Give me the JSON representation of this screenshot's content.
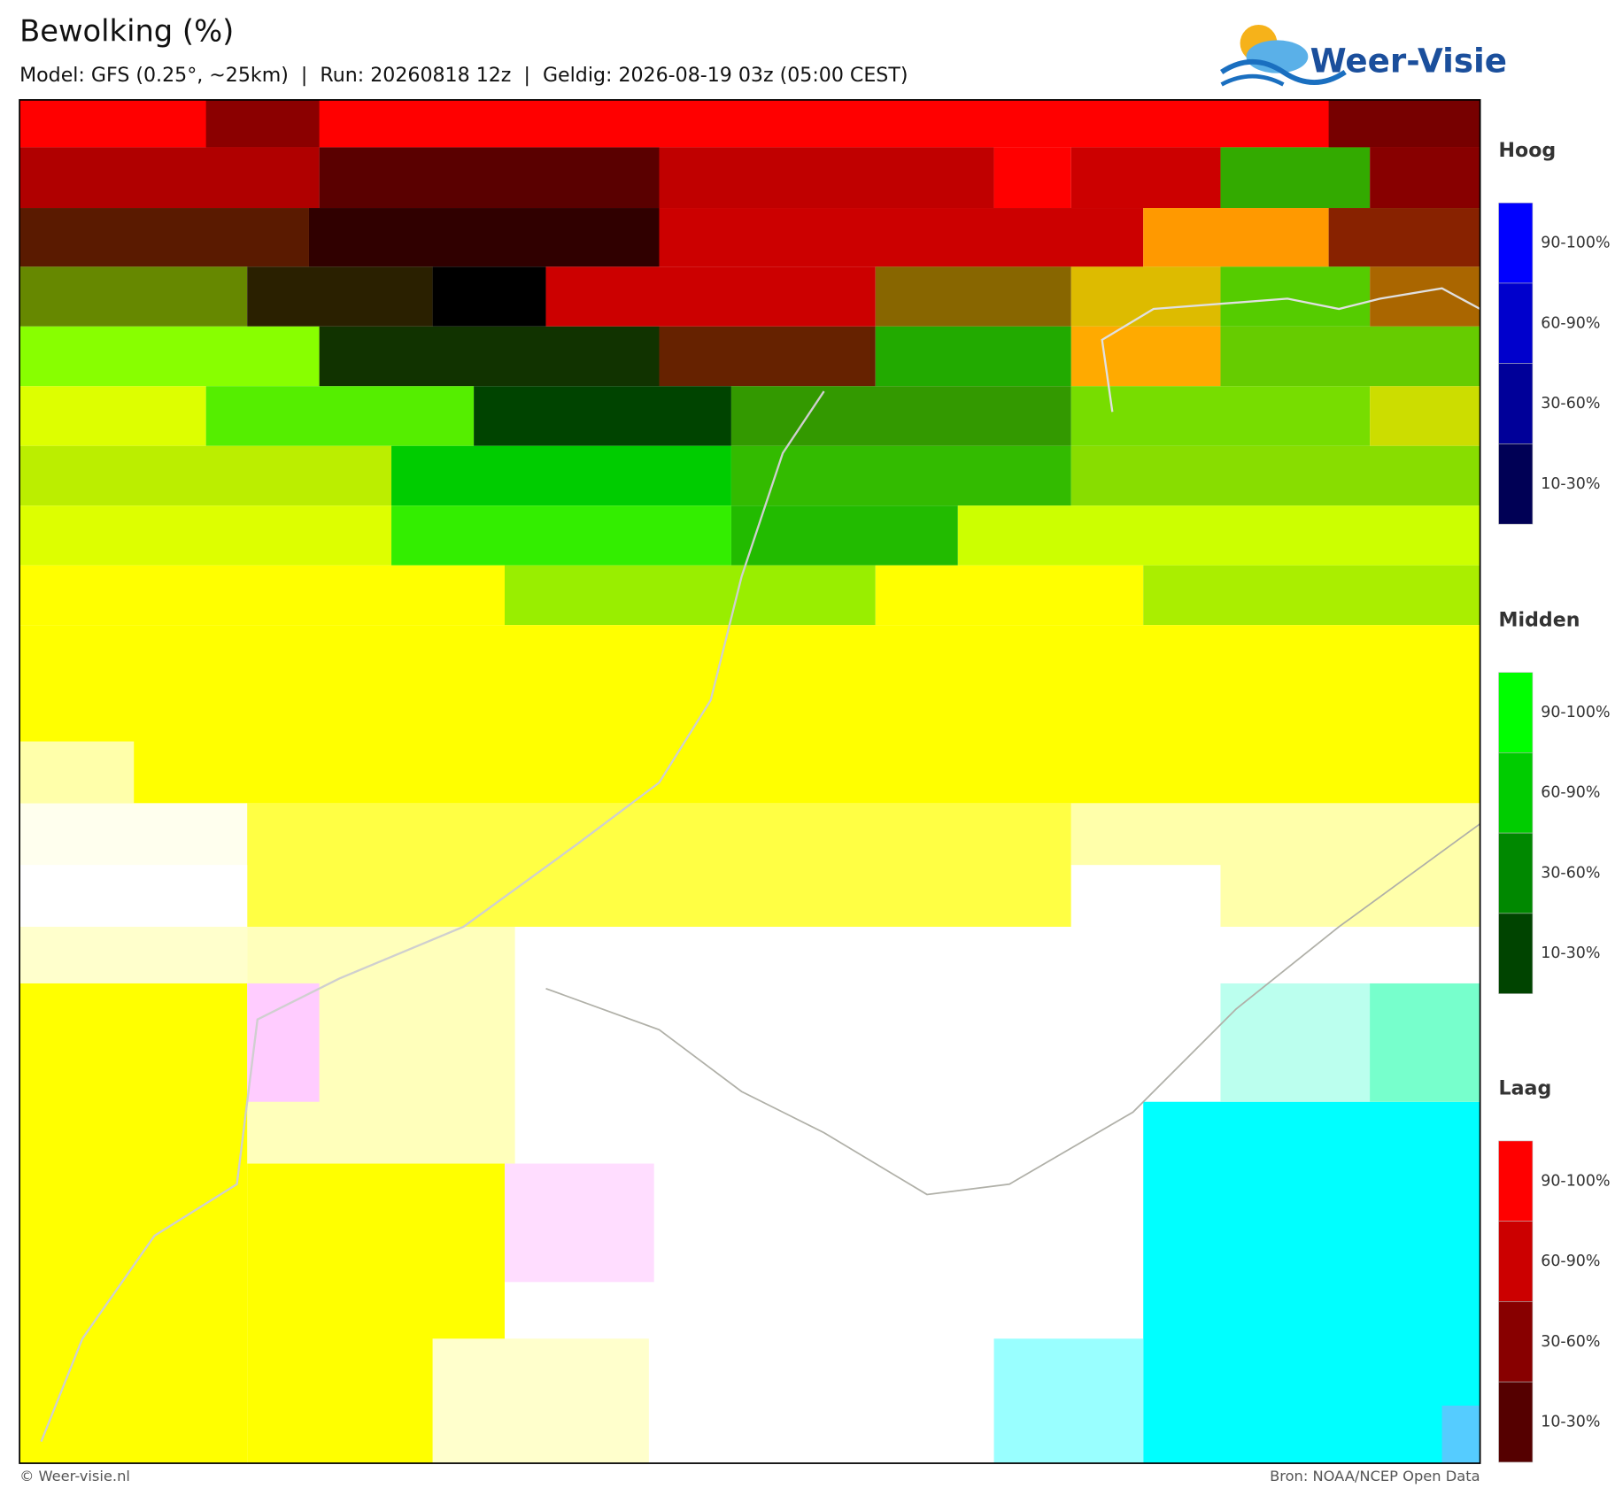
{
  "header": {
    "title": "Bewolking (%)",
    "subtitle": "Model: GFS (0.25°, ~25km)  |  Run: 20260818 12z  |  Geldig: 2026-08-19 03z (05:00 CEST)"
  },
  "logo": {
    "text": "Weer-Visie"
  },
  "legends": [
    {
      "title": "Hoog",
      "labels": [
        "90-100%",
        "60-90%",
        "30-60%",
        "10-30%"
      ],
      "colors": [
        "#0000ff",
        "#0000cc",
        "#000099",
        "#000055"
      ]
    },
    {
      "title": "Midden",
      "labels": [
        "90-100%",
        "60-90%",
        "30-60%",
        "10-30%"
      ],
      "colors": [
        "#00ff00",
        "#00cc00",
        "#008800",
        "#004400"
      ]
    },
    {
      "title": "Laag",
      "labels": [
        "90-100%",
        "60-90%",
        "30-60%",
        "10-30%"
      ],
      "colors": [
        "#ff0000",
        "#cc0000",
        "#880000",
        "#550000"
      ]
    }
  ],
  "footer": {
    "left": "© Weer-visie.nl",
    "right": "Bron: NOAA/NCEP Open Data"
  }
}
